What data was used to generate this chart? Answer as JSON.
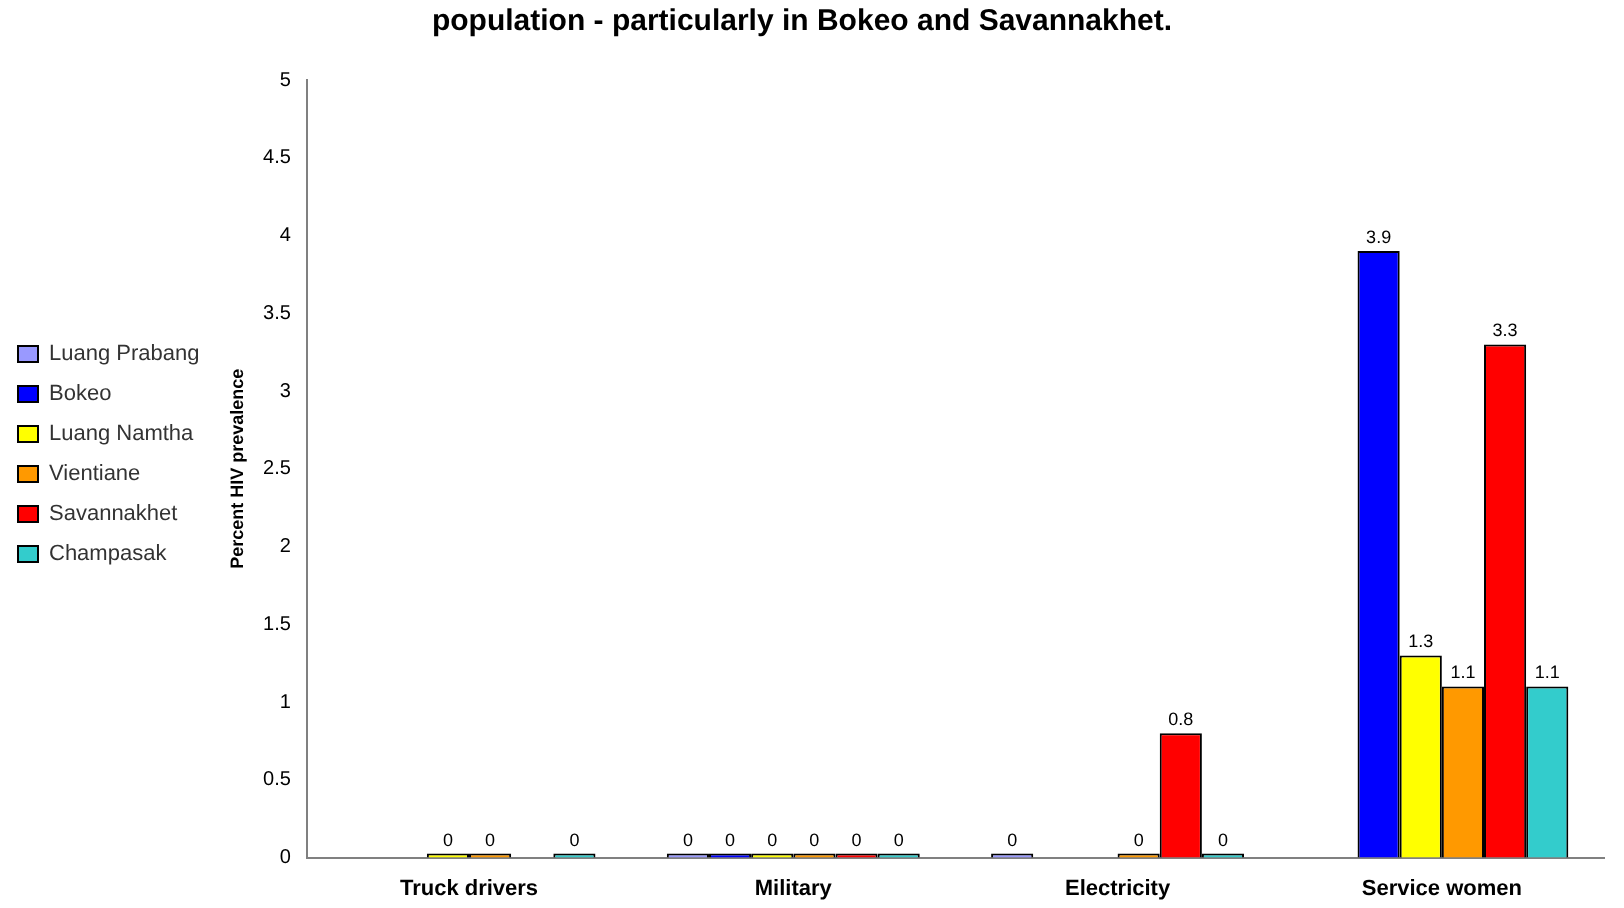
{
  "chart_data": {
    "type": "bar",
    "title": "population - particularly in Bokeo and Savannakhet.",
    "ylabel": "Percent HIV prevalence",
    "categories": [
      "Truck drivers",
      "Military",
      "Electricity",
      "Service women"
    ],
    "series": [
      {
        "name": "Luang Prabang",
        "color": "#9999ff",
        "values": [
          null,
          0,
          0,
          null
        ]
      },
      {
        "name": "Bokeo",
        "color": "#0000ff",
        "values": [
          null,
          0,
          null,
          3.9
        ]
      },
      {
        "name": "Luang Namtha",
        "color": "#ffff00",
        "values": [
          0,
          0,
          null,
          1.3
        ]
      },
      {
        "name": "Vientiane",
        "color": "#ff9900",
        "values": [
          0,
          0,
          0,
          1.1
        ]
      },
      {
        "name": "Savannakhet",
        "color": "#ff0000",
        "values": [
          null,
          0,
          0.8,
          3.3
        ]
      },
      {
        "name": "Champasak",
        "color": "#33cccc",
        "values": [
          0,
          0,
          0,
          1.1
        ]
      }
    ],
    "ylim": [
      0,
      5
    ],
    "yticks": [
      0,
      0.5,
      1,
      1.5,
      2,
      2.5,
      3,
      3.5,
      4,
      4.5,
      5
    ],
    "grid": false,
    "legend": "left",
    "data_labels": true
  }
}
